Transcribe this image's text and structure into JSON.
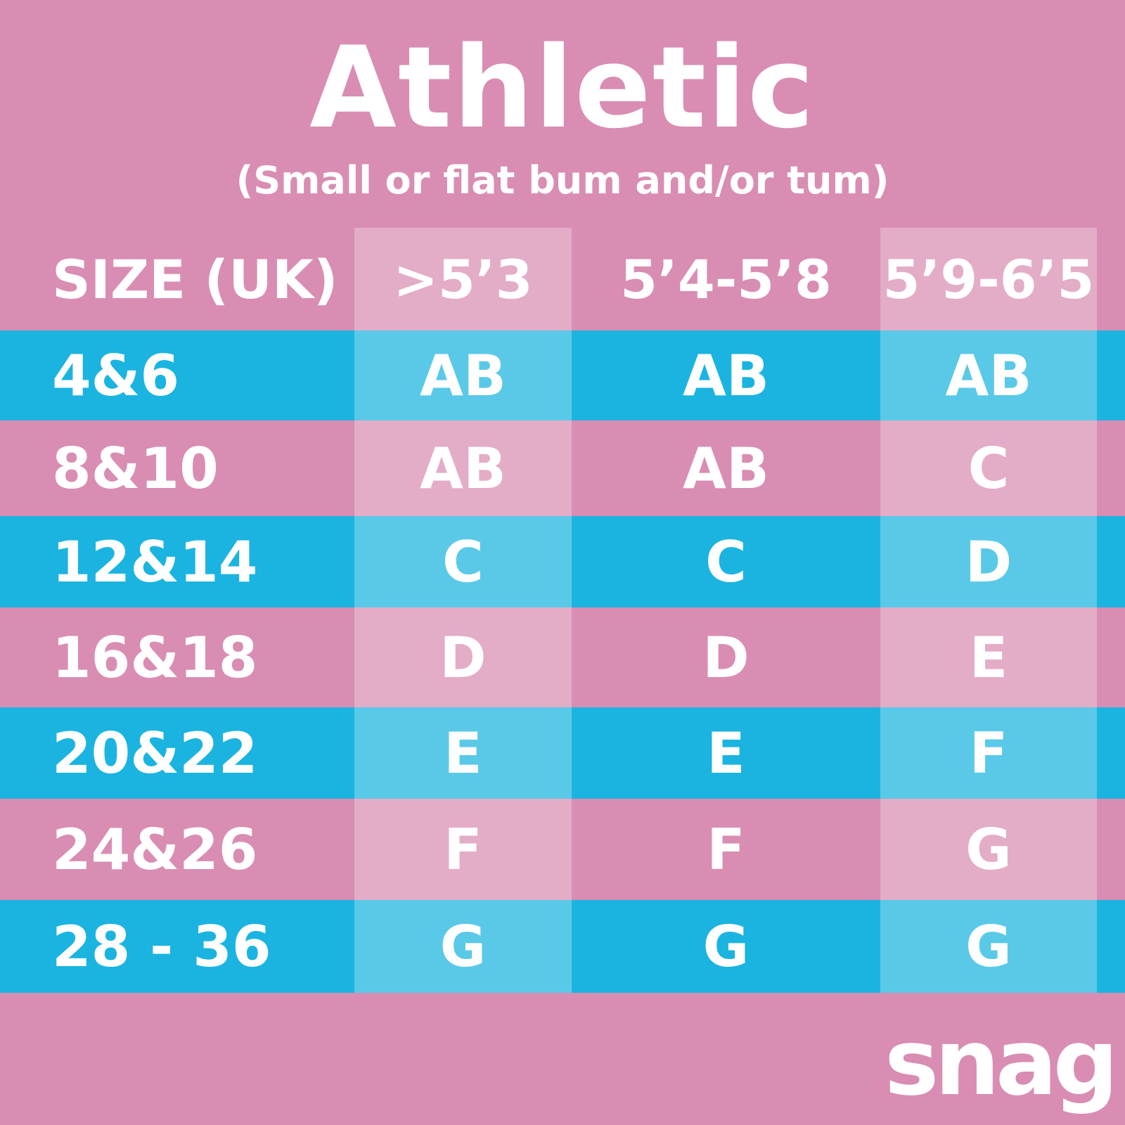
{
  "title": "Athletic",
  "subtitle": "(Small or flat bum and/or tum)",
  "table": {
    "header": {
      "size_label": "SIZE (UK)",
      "heights": [
        ">5’3",
        "5’4-5’8",
        "5’9-6’5"
      ]
    },
    "rows": [
      {
        "size": "4&6",
        "values": [
          "AB",
          "AB",
          "AB"
        ]
      },
      {
        "size": "8&10",
        "values": [
          "AB",
          "AB",
          "C"
        ]
      },
      {
        "size": "12&14",
        "values": [
          "C",
          "C",
          "D"
        ]
      },
      {
        "size": "16&18",
        "values": [
          "D",
          "D",
          "E"
        ]
      },
      {
        "size": "20&22",
        "values": [
          "E",
          "E",
          "F"
        ]
      },
      {
        "size": "24&26",
        "values": [
          "F",
          "F",
          "G"
        ]
      },
      {
        "size": "28 - 36",
        "values": [
          "G",
          "G",
          "G"
        ]
      }
    ]
  },
  "brand": "snag",
  "colors": {
    "pink": "#d98db2",
    "blue": "#1bb4e0",
    "text": "#ffffff"
  }
}
